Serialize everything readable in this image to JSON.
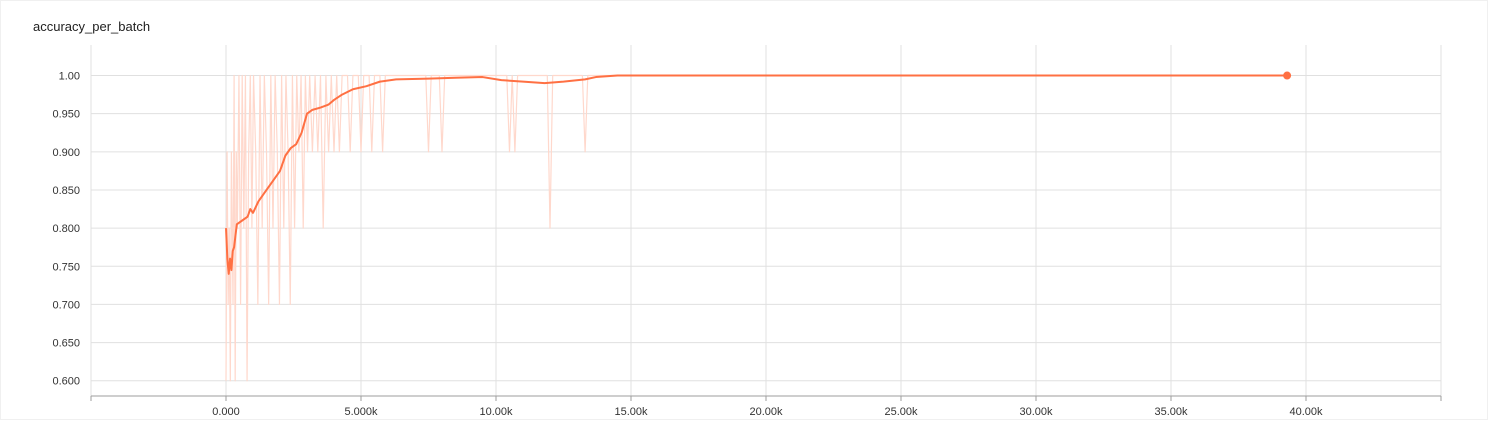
{
  "title": "accuracy_per_batch",
  "colors": {
    "smoothed": "#ff7043",
    "raw": "#ffd8cc",
    "grid": "#e0e0e0",
    "axis": "#9e9e9e"
  },
  "chart_data": {
    "type": "line",
    "title": "accuracy_per_batch",
    "xlabel": "",
    "ylabel": "",
    "xlim": [
      -5000,
      45000
    ],
    "ylim": [
      0.58,
      1.04
    ],
    "x_ticks": [
      0,
      5000,
      10000,
      15000,
      20000,
      25000,
      30000,
      35000,
      40000
    ],
    "x_tick_labels": [
      "0.000",
      "5.000k",
      "10.00k",
      "15.00k",
      "20.00k",
      "25.00k",
      "30.00k",
      "35.00k",
      "40.00k"
    ],
    "y_ticks": [
      0.6,
      0.65,
      0.7,
      0.75,
      0.8,
      0.85,
      0.9,
      0.95,
      1.0
    ],
    "y_tick_labels": [
      "0.600",
      "0.650",
      "0.700",
      "0.750",
      "0.800",
      "0.850",
      "0.900",
      "0.950",
      "1.00"
    ],
    "grid": true,
    "series": [
      {
        "values_kind": "smoothed",
        "points": [
          [
            0,
            0.8
          ],
          [
            50,
            0.76
          ],
          [
            100,
            0.74
          ],
          [
            150,
            0.76
          ],
          [
            200,
            0.745
          ],
          [
            250,
            0.77
          ],
          [
            300,
            0.775
          ],
          [
            350,
            0.79
          ],
          [
            400,
            0.805
          ],
          [
            600,
            0.81
          ],
          [
            800,
            0.815
          ],
          [
            900,
            0.825
          ],
          [
            1000,
            0.82
          ],
          [
            1200,
            0.835
          ],
          [
            1500,
            0.85
          ],
          [
            1800,
            0.865
          ],
          [
            2000,
            0.875
          ],
          [
            2200,
            0.895
          ],
          [
            2400,
            0.905
          ],
          [
            2600,
            0.91
          ],
          [
            2800,
            0.925
          ],
          [
            3000,
            0.95
          ],
          [
            3200,
            0.955
          ],
          [
            3500,
            0.958
          ],
          [
            3800,
            0.962
          ],
          [
            4000,
            0.968
          ],
          [
            4300,
            0.975
          ],
          [
            4700,
            0.982
          ],
          [
            5200,
            0.986
          ],
          [
            5700,
            0.992
          ],
          [
            6300,
            0.995
          ],
          [
            7500,
            0.996
          ],
          [
            8500,
            0.997
          ],
          [
            9500,
            0.998
          ],
          [
            10200,
            0.994
          ],
          [
            11000,
            0.992
          ],
          [
            11800,
            0.99
          ],
          [
            12500,
            0.992
          ],
          [
            13300,
            0.995
          ],
          [
            13700,
            0.998
          ],
          [
            14500,
            1.0
          ],
          [
            39300,
            1.0
          ]
        ]
      },
      {
        "values_kind": "raw",
        "points": [
          [
            0,
            0.6
          ],
          [
            40,
            0.9
          ],
          [
            80,
            0.7
          ],
          [
            120,
            0.8
          ],
          [
            160,
            0.6
          ],
          [
            200,
            0.9
          ],
          [
            260,
            0.7
          ],
          [
            300,
            1.0
          ],
          [
            340,
            0.6
          ],
          [
            380,
            0.9
          ],
          [
            420,
            0.8
          ],
          [
            480,
            1.0
          ],
          [
            540,
            0.7
          ],
          [
            600,
            1.0
          ],
          [
            660,
            0.8
          ],
          [
            720,
            1.0
          ],
          [
            780,
            0.6
          ],
          [
            840,
            0.9
          ],
          [
            900,
            1.0
          ],
          [
            960,
            0.8
          ],
          [
            1020,
            1.0
          ],
          [
            1100,
            0.9
          ],
          [
            1180,
            0.7
          ],
          [
            1260,
            1.0
          ],
          [
            1340,
            0.8
          ],
          [
            1420,
            1.0
          ],
          [
            1500,
            0.9
          ],
          [
            1580,
            0.7
          ],
          [
            1660,
            1.0
          ],
          [
            1740,
            0.8
          ],
          [
            1820,
            1.0
          ],
          [
            1900,
            0.9
          ],
          [
            1980,
            0.7
          ],
          [
            2060,
            1.0
          ],
          [
            2140,
            0.8
          ],
          [
            2220,
            1.0
          ],
          [
            2300,
            0.9
          ],
          [
            2380,
            0.7
          ],
          [
            2460,
            1.0
          ],
          [
            2540,
            0.8
          ],
          [
            2620,
            1.0
          ],
          [
            2700,
            0.9
          ],
          [
            2780,
            1.0
          ],
          [
            2860,
            0.8
          ],
          [
            2940,
            1.0
          ],
          [
            3020,
            0.9
          ],
          [
            3100,
            1.0
          ],
          [
            3200,
            0.9
          ],
          [
            3300,
            1.0
          ],
          [
            3400,
            0.9
          ],
          [
            3500,
            1.0
          ],
          [
            3600,
            0.8
          ],
          [
            3700,
            1.0
          ],
          [
            3800,
            0.9
          ],
          [
            3900,
            1.0
          ],
          [
            4000,
            0.9
          ],
          [
            4100,
            1.0
          ],
          [
            4200,
            0.9
          ],
          [
            4300,
            1.0
          ],
          [
            4500,
            1.0
          ],
          [
            4600,
            0.9
          ],
          [
            4700,
            1.0
          ],
          [
            4900,
            1.0
          ],
          [
            5000,
            0.9
          ],
          [
            5100,
            1.0
          ],
          [
            5300,
            1.0
          ],
          [
            5400,
            0.9
          ],
          [
            5500,
            1.0
          ],
          [
            5700,
            1.0
          ],
          [
            5800,
            0.9
          ],
          [
            5900,
            1.0
          ],
          [
            7400,
            1.0
          ],
          [
            7500,
            0.9
          ],
          [
            7600,
            1.0
          ],
          [
            7900,
            1.0
          ],
          [
            8000,
            0.9
          ],
          [
            8100,
            1.0
          ],
          [
            10400,
            1.0
          ],
          [
            10500,
            0.9
          ],
          [
            10600,
            1.0
          ],
          [
            10700,
            0.9
          ],
          [
            10800,
            1.0
          ],
          [
            11900,
            1.0
          ],
          [
            12000,
            0.8
          ],
          [
            12100,
            1.0
          ],
          [
            13200,
            1.0
          ],
          [
            13300,
            0.9
          ],
          [
            13400,
            1.0
          ],
          [
            39300,
            1.0
          ]
        ]
      }
    ],
    "last_point": [
      39300,
      1.0
    ]
  }
}
